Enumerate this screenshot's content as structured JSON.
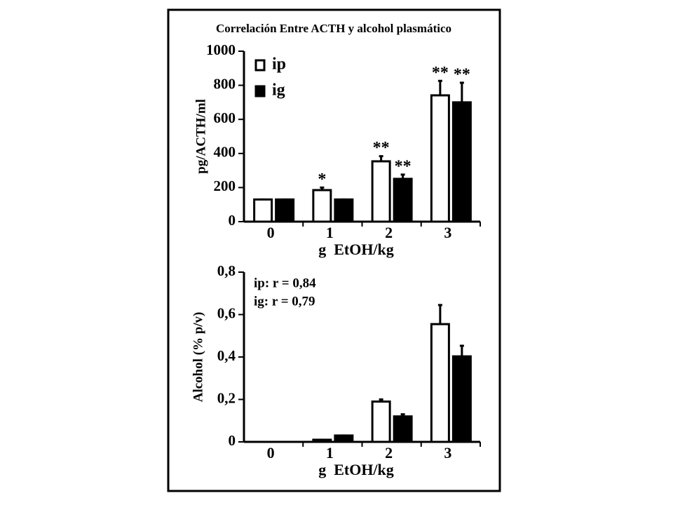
{
  "chart_data": [
    {
      "type": "bar",
      "title": "Correlación Entre ACTH y alcohol plasmático",
      "x_label": "g  EtOH/kg",
      "y_label": "pg/ACTH/ml",
      "categories": [
        "0",
        "1",
        "2",
        "3"
      ],
      "series": [
        {
          "name": "ip",
          "color": "#ffffff",
          "values": [
            130,
            185,
            354,
            741
          ],
          "errors": [
            0,
            15,
            30,
            85
          ],
          "annotations": [
            null,
            "*",
            "**",
            "**"
          ]
        },
        {
          "name": "ig",
          "color": "#000000",
          "values": [
            130,
            130,
            251,
            700
          ],
          "errors": [
            0,
            0,
            25,
            115
          ],
          "annotations": [
            null,
            null,
            "**",
            "**"
          ]
        }
      ],
      "ylim": [
        0,
        1000
      ],
      "yticks": [
        0,
        200,
        400,
        600,
        800,
        1000
      ],
      "legend": "top-left"
    },
    {
      "type": "bar",
      "x_label": "g  EtOH/kg",
      "y_label": "Alcohol (% p/v)",
      "categories": [
        "0",
        "1",
        "2",
        "3"
      ],
      "series": [
        {
          "name": "ip",
          "color": "#ffffff",
          "values": [
            0,
            0.01,
            0.19,
            0.555
          ],
          "errors": [
            0,
            0,
            0.01,
            0.09
          ]
        },
        {
          "name": "ig",
          "color": "#000000",
          "values": [
            0,
            0.03,
            0.12,
            0.403
          ],
          "errors": [
            0,
            0,
            0.01,
            0.05
          ]
        }
      ],
      "annotations": [
        "ip: r = 0,84",
        "ig: r = 0,79"
      ],
      "ylim": [
        0,
        0.8
      ],
      "yticks": [
        0,
        {
          "value": 0.2,
          "label": "0,2"
        },
        {
          "value": 0.4,
          "label": "0,4"
        },
        {
          "value": 0.6,
          "label": "0,6"
        },
        {
          "value": 0.8,
          "label": "0,8"
        }
      ]
    }
  ]
}
